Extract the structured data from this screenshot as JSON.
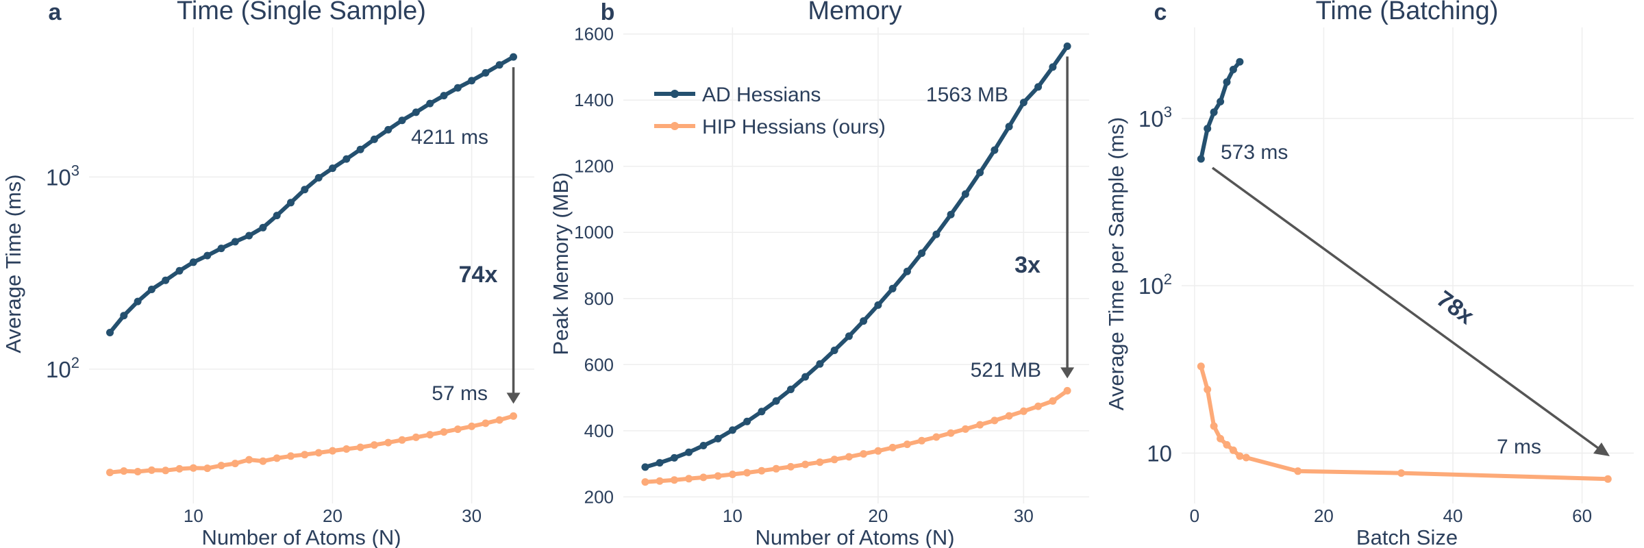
{
  "chart_data": [
    {
      "panel": "a",
      "type": "line",
      "title": "Time (Single Sample)",
      "xlabel": "Number of Atoms (N)",
      "ylabel": "Average Time (ms)",
      "yscale": "log",
      "xlim": [
        2.5,
        34.5
      ],
      "ylim": [
        20,
        6000
      ],
      "xticks": [
        10,
        20,
        30
      ],
      "yticks": [
        {
          "value": 100,
          "base": "10",
          "exp": "2"
        },
        {
          "value": 1000,
          "base": "10",
          "exp": "3"
        }
      ],
      "series": [
        {
          "name": "AD Hessians",
          "color": "#24506f",
          "x": [
            4,
            5,
            6,
            7,
            8,
            9,
            10,
            11,
            12,
            13,
            14,
            15,
            16,
            17,
            18,
            19,
            20,
            21,
            22,
            23,
            24,
            25,
            26,
            27,
            28,
            29,
            30,
            31,
            32,
            33
          ],
          "values": [
            155,
            190,
            225,
            260,
            290,
            325,
            360,
            390,
            425,
            460,
            495,
            545,
            630,
            735,
            860,
            990,
            1110,
            1240,
            1390,
            1570,
            1760,
            1970,
            2170,
            2410,
            2650,
            2910,
            3170,
            3480,
            3830,
            4211
          ]
        },
        {
          "name": "HIP Hessians (ours)",
          "color": "#fdaa78",
          "x": [
            4,
            5,
            6,
            7,
            8,
            9,
            10,
            11,
            12,
            13,
            14,
            15,
            16,
            17,
            18,
            19,
            20,
            21,
            22,
            23,
            24,
            25,
            26,
            27,
            28,
            29,
            30,
            31,
            32,
            33
          ],
          "values": [
            29,
            29.5,
            29.3,
            29.8,
            29.7,
            30.3,
            30.6,
            30.5,
            31.5,
            32.3,
            33.8,
            33.2,
            34.4,
            35.3,
            35.9,
            36.7,
            37.6,
            38.4,
            39.2,
            40.3,
            41.5,
            42.8,
            44.2,
            45.6,
            47.1,
            48.7,
            50.4,
            52.3,
            54.4,
            57
          ]
        }
      ],
      "annotations": {
        "top_label": "4211 ms",
        "bottom_label": "57 ms",
        "ratio": "74x"
      }
    },
    {
      "panel": "b",
      "type": "line",
      "title": "Memory",
      "xlabel": "Number of Atoms (N)",
      "ylabel": "Peak Memory (MB)",
      "yscale": "linear",
      "xlim": [
        2.5,
        34.5
      ],
      "ylim": [
        180,
        1620
      ],
      "xticks": [
        10,
        20,
        30
      ],
      "yticks": [
        200,
        400,
        600,
        800,
        1000,
        1200,
        1400,
        1600
      ],
      "series": [
        {
          "name": "AD Hessians",
          "color": "#24506f",
          "x": [
            4,
            5,
            6,
            7,
            8,
            9,
            10,
            11,
            12,
            13,
            14,
            15,
            16,
            17,
            18,
            19,
            20,
            21,
            22,
            23,
            24,
            25,
            26,
            27,
            28,
            29,
            30,
            31,
            32,
            33
          ],
          "values": [
            290,
            303,
            318,
            335,
            355,
            376,
            402,
            428,
            458,
            490,
            525,
            563,
            602,
            643,
            686,
            732,
            780,
            830,
            882,
            937,
            994,
            1054,
            1116,
            1181,
            1249,
            1320,
            1393,
            1440,
            1500,
            1563
          ]
        },
        {
          "name": "HIP Hessians (ours)",
          "color": "#fdaa78",
          "x": [
            4,
            5,
            6,
            7,
            8,
            9,
            10,
            11,
            12,
            13,
            14,
            15,
            16,
            17,
            18,
            19,
            20,
            21,
            22,
            23,
            24,
            25,
            26,
            27,
            28,
            29,
            30,
            31,
            32,
            33
          ],
          "values": [
            245,
            248,
            251,
            255,
            259,
            263,
            268,
            273,
            279,
            285,
            291,
            298,
            305,
            313,
            321,
            330,
            339,
            349,
            359,
            370,
            381,
            393,
            405,
            418,
            431,
            445,
            459,
            474,
            490,
            521
          ]
        }
      ],
      "annotations": {
        "top_label": "1563 MB",
        "bottom_label": "521 MB",
        "ratio": "3x"
      }
    },
    {
      "panel": "c",
      "type": "line",
      "title": "Time (Batching)",
      "xlabel": "Batch Size",
      "ylabel": "Average Time per Sample (ms)",
      "yscale": "log",
      "xlim": [
        -2,
        68
      ],
      "ylim": [
        5,
        3500
      ],
      "xticks": [
        0,
        20,
        40,
        60
      ],
      "yticks": [
        {
          "value": 10,
          "base": "10",
          "exp": ""
        },
        {
          "value": 100,
          "base": "10",
          "exp": "2"
        },
        {
          "value": 1000,
          "base": "10",
          "exp": "3"
        }
      ],
      "series": [
        {
          "name": "AD Hessians",
          "color": "#24506f",
          "x": [
            1,
            2,
            3,
            4,
            5,
            6,
            7
          ],
          "values": [
            573,
            870,
            1090,
            1260,
            1650,
            1960,
            2180
          ]
        },
        {
          "name": "HIP Hessians (ours)",
          "color": "#fdaa78",
          "x": [
            1,
            2,
            3,
            4,
            5,
            6,
            7,
            8,
            16,
            32,
            64
          ],
          "values": [
            33,
            24,
            14.5,
            12.2,
            11.2,
            10.4,
            9.6,
            9.4,
            7.8,
            7.6,
            7
          ]
        }
      ],
      "annotations": {
        "top_label": "573 ms",
        "bottom_label": "7 ms",
        "ratio": "78x"
      }
    }
  ],
  "legend": {
    "items": [
      "AD Hessians",
      "HIP Hessians (ours)"
    ],
    "placement": "upper-left of panel b"
  },
  "arrow_color": "#555555"
}
